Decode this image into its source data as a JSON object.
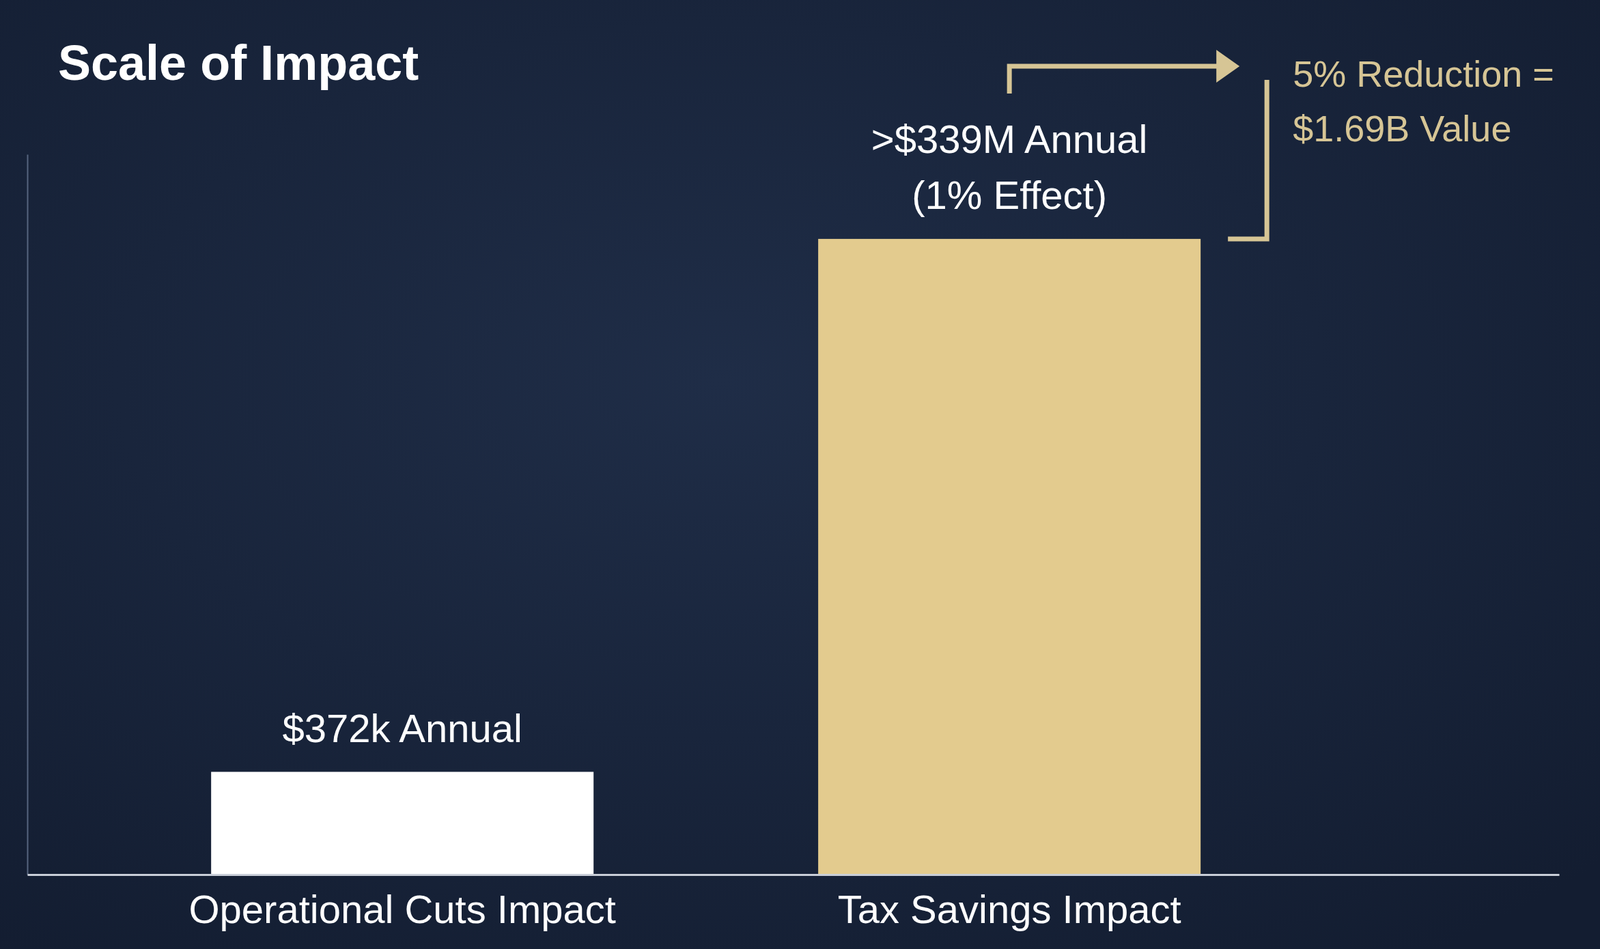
{
  "chart_data": {
    "type": "bar",
    "title": "Scale of Impact",
    "categories": [
      "Operational Cuts Impact",
      "Tax Savings Impact"
    ],
    "values": [
      372000,
      339000000
    ],
    "value_labels": [
      "$372k Annual",
      ">$339M Annual\n(1% Effect)"
    ],
    "data_labels": true,
    "colors": [
      "#ffffff",
      "#e3cb8e"
    ],
    "log": "y",
    "ylim": [
      100000,
      1000000000
    ],
    "tick_labels": "x",
    "annotations": [
      {
        "text": "5% Reduction =\n$1.69B Value",
        "color": "#d6c595"
      }
    ]
  }
}
